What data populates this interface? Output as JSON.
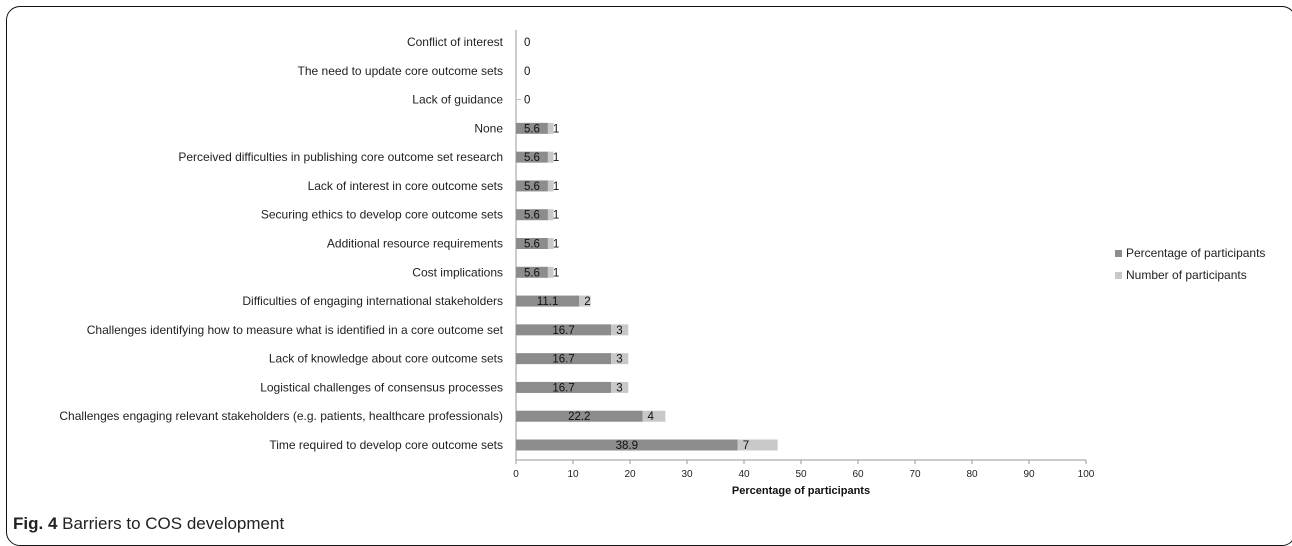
{
  "figure": {
    "caption_label": "Fig. 4",
    "caption_text": "Barriers to COS development"
  },
  "chart_data": {
    "type": "bar",
    "orientation": "horizontal",
    "stacked": true,
    "categories": [
      "Conflict of interest",
      "The need to update core outcome sets",
      "Lack of guidance",
      "None",
      "Perceived difficulties in publishing core outcome set research",
      "Lack of interest in core outcome sets",
      "Securing ethics to develop core outcome sets",
      "Additional resource requirements",
      "Cost implications",
      "Difficulties of engaging international stakeholders",
      "Challenges identifying how to measure what is identified in a core outcome set",
      "Lack of knowledge about core outcome sets",
      "Logistical challenges of consensus processes",
      "Challenges engaging relevant stakeholders (e.g. patients, healthcare professionals)",
      "Time required to develop core outcome sets"
    ],
    "series": [
      {
        "name": "Percentage of participants",
        "color": "#8c8c8c",
        "values": [
          0,
          0,
          0,
          5.6,
          5.6,
          5.6,
          5.6,
          5.6,
          5.6,
          11.1,
          16.7,
          16.7,
          16.7,
          22.2,
          38.9
        ],
        "labels": [
          "",
          "",
          "",
          "5.6",
          "5.6",
          "5.6",
          "5.6",
          "5.6",
          "5.6",
          "11.1",
          "16.7",
          "16.7",
          "16.7",
          "22.2",
          "38.9"
        ]
      },
      {
        "name": "Number of participants",
        "color": "#c8c8c8",
        "values": [
          0,
          0,
          0,
          1,
          1,
          1,
          1,
          1,
          1,
          2,
          3,
          3,
          3,
          4,
          7
        ],
        "labels": [
          "0",
          "0",
          "0",
          "1",
          "1",
          "1",
          "1",
          "1",
          "1",
          "2",
          "3",
          "3",
          "3",
          "4",
          "7"
        ]
      }
    ],
    "xlim": [
      0,
      100
    ],
    "xticks": [
      "0",
      "10",
      "20",
      "30",
      "40",
      "50",
      "60",
      "70",
      "80",
      "90",
      "100"
    ],
    "xlabel": "Percentage of participants",
    "ylabel": "",
    "grid": false,
    "legend_position": "right"
  }
}
